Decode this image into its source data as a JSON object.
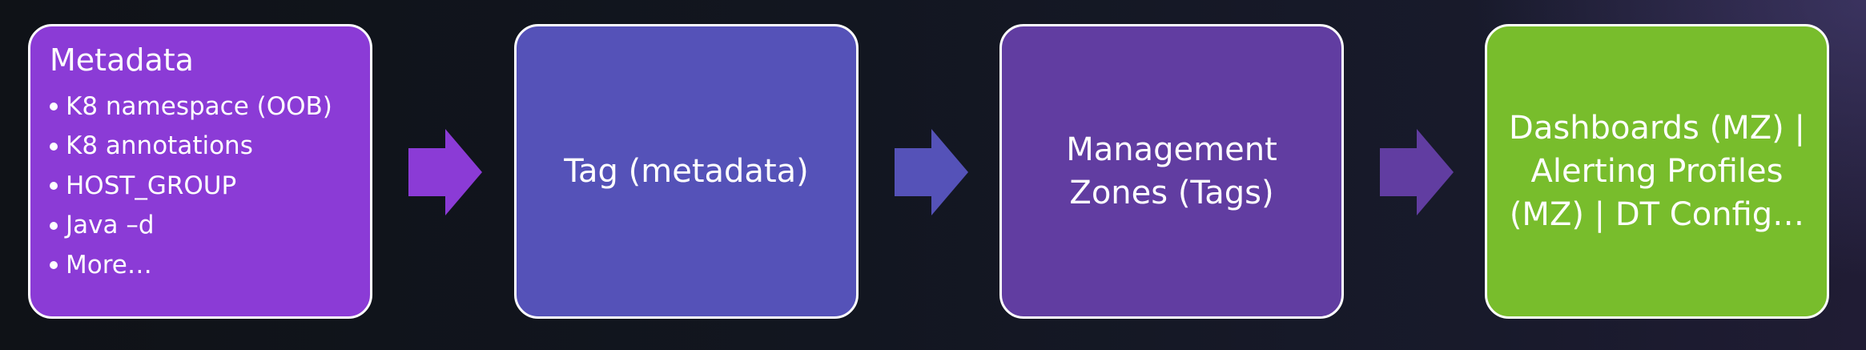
{
  "colors": {
    "box_1": "#8b3bd6",
    "box_2": "#5552b8",
    "box_3": "#613da1",
    "box_4": "#78bd2c",
    "arrow_1": "#8b3bd6",
    "arrow_2": "#5552b8",
    "arrow_3": "#613da1",
    "border": "#ffffff"
  },
  "boxes": [
    {
      "title": "Metadata",
      "items": [
        "K8 namespace (OOB)",
        "K8 annotations",
        "HOST_GROUP",
        "Java –d",
        "More…"
      ]
    },
    {
      "text": "Tag (metadata)"
    },
    {
      "text": "Management\nZones (Tags)"
    },
    {
      "text": "Dashboards (MZ) |\nAlerting Profiles\n(MZ) | DT Config…"
    }
  ],
  "arrows": [
    {
      "icon": "arrow-right-icon"
    },
    {
      "icon": "arrow-right-icon"
    },
    {
      "icon": "arrow-right-icon"
    }
  ]
}
